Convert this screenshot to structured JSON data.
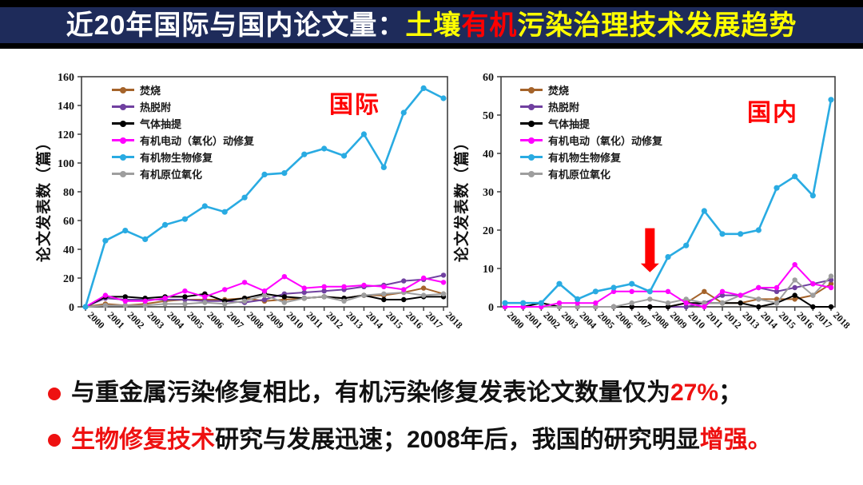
{
  "title": {
    "prefix": "近20年国际与国内论文量：",
    "soil": "土壤",
    "organic": "有机",
    "suffix": "污染治理技术发展趋势"
  },
  "colors": {
    "title_bar_bg": "#1e2b5a",
    "title_white": "#ffffff",
    "title_yellow": "#ffff00",
    "red_accent": "#ff0000",
    "bullet_red": "#ee1111",
    "series_incineration": "#a5632a",
    "series_thermal": "#7040a0",
    "series_gas": "#000000",
    "series_electro": "#ff00ff",
    "series_bio": "#29abe2",
    "series_insitu": "#9e9e9e"
  },
  "chart_data": [
    {
      "type": "line",
      "region_label": "国际",
      "ylabel": "论文发表数（篇）",
      "xlabel": "",
      "grid": false,
      "legend_position": "top-left",
      "ylim": [
        0,
        160
      ],
      "yticks": [
        0,
        20,
        40,
        60,
        80,
        100,
        120,
        140,
        160
      ],
      "x": [
        "2000",
        "2001",
        "2002",
        "2003",
        "2004",
        "2005",
        "2006",
        "2007",
        "2008",
        "2009",
        "2010",
        "2011",
        "2012",
        "2013",
        "2014",
        "2015",
        "2016",
        "2017",
        "2018"
      ],
      "series": [
        {
          "name": "焚烧",
          "color": "#a5632a",
          "values": [
            0,
            2,
            1,
            2,
            4,
            5,
            5,
            5,
            6,
            4,
            5,
            6,
            7,
            6,
            8,
            8,
            10,
            13,
            9
          ]
        },
        {
          "name": "热脱附",
          "color": "#7040a0",
          "values": [
            0,
            6,
            5,
            5,
            5,
            5,
            4,
            4,
            3,
            5,
            9,
            10,
            11,
            12,
            14,
            15,
            18,
            19,
            22
          ]
        },
        {
          "name": "气体抽提",
          "color": "#000000",
          "values": [
            0,
            7,
            7,
            6,
            7,
            7,
            9,
            4,
            6,
            9,
            7,
            6,
            7,
            6,
            8,
            5,
            5,
            7,
            7
          ]
        },
        {
          "name": "有机电动（氧化）动修复",
          "color": "#ff00ff",
          "values": [
            0,
            8,
            4,
            4,
            6,
            11,
            7,
            12,
            17,
            11,
            21,
            13,
            14,
            14,
            15,
            14,
            12,
            20,
            17
          ]
        },
        {
          "name": "有机物生物修复",
          "color": "#29abe2",
          "values": [
            0,
            46,
            53,
            47,
            57,
            61,
            70,
            66,
            76,
            92,
            93,
            106,
            110,
            105,
            120,
            97,
            135,
            152,
            145
          ]
        },
        {
          "name": "有机原位氧化",
          "color": "#9e9e9e",
          "values": [
            0,
            1,
            1,
            1,
            2,
            2,
            3,
            2,
            4,
            8,
            3,
            6,
            7,
            4,
            8,
            9,
            10,
            8,
            9
          ]
        }
      ]
    },
    {
      "type": "line",
      "region_label": "国内",
      "ylabel": "论文发表数（篇）",
      "xlabel": "",
      "grid": false,
      "legend_position": "top-left",
      "ylim": [
        0,
        60
      ],
      "yticks": [
        0,
        10,
        20,
        30,
        40,
        50,
        60
      ],
      "x": [
        "2000",
        "2001",
        "2002",
        "2003",
        "2004",
        "2005",
        "2006",
        "2007",
        "2008",
        "2009",
        "2010",
        "2011",
        "2012",
        "2013",
        "2014",
        "2015",
        "2016",
        "2017",
        "2018"
      ],
      "arrow": {
        "x": "2008",
        "top_value": 20.5,
        "tip_value": 9,
        "color": "#ff0000"
      },
      "series": [
        {
          "name": "焚烧",
          "color": "#a5632a",
          "values": [
            0,
            0,
            0,
            0,
            0,
            0,
            0,
            0,
            0,
            0,
            1,
            4,
            1,
            1,
            2,
            2,
            2,
            3,
            6
          ]
        },
        {
          "name": "热脱附",
          "color": "#7040a0",
          "values": [
            0,
            0,
            0,
            0,
            0,
            0,
            0,
            0,
            0,
            0,
            0,
            1,
            3,
            3,
            5,
            4,
            5,
            6,
            7
          ]
        },
        {
          "name": "气体抽提",
          "color": "#000000",
          "values": [
            0,
            0,
            1,
            0,
            0,
            0,
            0,
            0,
            0,
            0,
            1,
            1,
            1,
            1,
            0,
            1,
            3,
            0,
            0
          ]
        },
        {
          "name": "有机电动（氧化）动修复",
          "color": "#ff00ff",
          "values": [
            0,
            0,
            0,
            1,
            1,
            1,
            4,
            4,
            4,
            4,
            1,
            0,
            4,
            3,
            5,
            5,
            11,
            6,
            5
          ]
        },
        {
          "name": "有机物生物修复",
          "color": "#29abe2",
          "values": [
            1,
            1,
            1,
            6,
            2,
            4,
            5,
            6,
            4,
            13,
            16,
            25,
            19,
            19,
            20,
            31,
            34,
            29,
            54
          ]
        },
        {
          "name": "有机原位氧化",
          "color": "#9e9e9e",
          "values": [
            0,
            0,
            0,
            0,
            0,
            0,
            0,
            1,
            2,
            1,
            2,
            1,
            1,
            3,
            2,
            1,
            7,
            3,
            8
          ]
        }
      ]
    }
  ],
  "bullets": [
    {
      "parts": [
        "与重金属污染修复相比，有机污染修复发表论文数量仅为",
        "27%",
        "；"
      ]
    },
    {
      "parts": [
        "生物修复技术",
        "研究与发展迅速；2008年后，我国的研究明显",
        "增强。"
      ]
    }
  ]
}
